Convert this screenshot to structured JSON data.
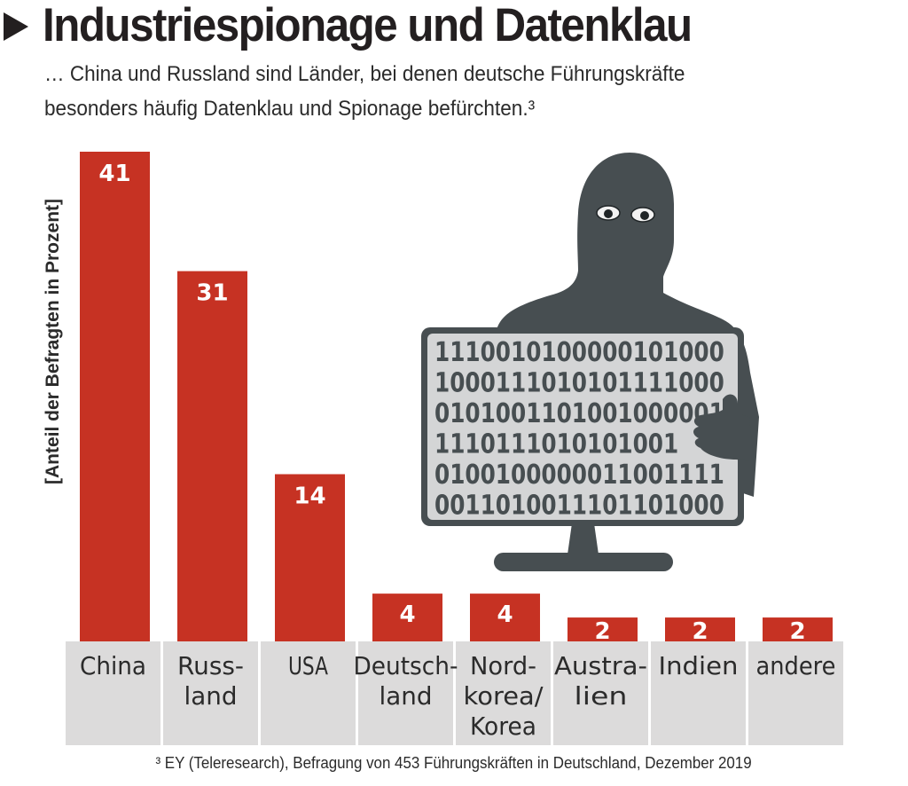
{
  "header": {
    "title": "Industriespionage und Datenklau",
    "subtitle_line1": "… China und Russland sind Länder, bei denen deutsche Führungskräfte",
    "subtitle_line2": "besonders häufig Datenklau und Spionage befürchten.³"
  },
  "footnote": "³ EY (Teleresearch), Befragung von 453 Führungskräften in Deutschland, Dezember 2019",
  "illustration": {
    "icon": "hooded-hacker-with-monitor-icon",
    "screen_lines": [
      "1110010100000101000",
      "1000111010101111000",
      "0101001101001000001",
      "1110111010101001",
      "0100100000011001111",
      "0011010011101101000"
    ]
  },
  "colors": {
    "bar": "#c63223",
    "label_cell": "#dcdbdb",
    "text": "#2b2b2b",
    "illustration": "#474e51",
    "screen": "#d4d5d6"
  },
  "chart_data": {
    "type": "bar",
    "title": "Industriespionage und Datenklau",
    "xlabel": "",
    "ylabel": "[Anteil der Befragten in Prozent]",
    "categories": [
      "China",
      "Russland",
      "USA",
      "Deutschland",
      "Nordkorea/Korea",
      "Australien",
      "Indien",
      "andere"
    ],
    "category_labels": [
      [
        "China"
      ],
      [
        "Russ-",
        "land"
      ],
      [
        "USA"
      ],
      [
        "Deutsch-",
        "land"
      ],
      [
        "Nord-",
        "korea/",
        "Korea"
      ],
      [
        "Austra-",
        "lien"
      ],
      [
        "Indien"
      ],
      [
        "andere"
      ]
    ],
    "values": [
      41,
      31,
      14,
      4,
      4,
      2,
      2,
      2
    ],
    "ylim": [
      0,
      41
    ],
    "grid": false,
    "legend": "none",
    "data_labels": true
  }
}
